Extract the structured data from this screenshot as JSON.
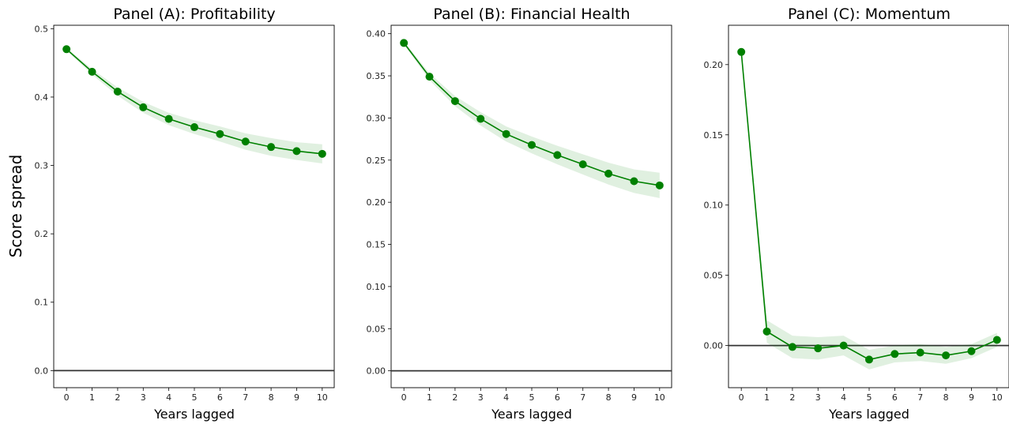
{
  "figure": {
    "ylabel": "Score spread"
  },
  "chart_data": [
    {
      "type": "line",
      "title": "Panel (A): Profitability",
      "xlabel": "Years lagged",
      "ylabel": "Score spread",
      "x": [
        0,
        1,
        2,
        3,
        4,
        5,
        6,
        7,
        8,
        9,
        10
      ],
      "ylim": [
        -0.025,
        0.505
      ],
      "yticks": [
        0.0,
        0.1,
        0.2,
        0.3,
        0.4,
        0.5
      ],
      "ytick_labels": [
        "0.0",
        "0.1",
        "0.2",
        "0.3",
        "0.4",
        "0.5"
      ],
      "series": [
        {
          "values": [
            0.47,
            0.437,
            0.408,
            0.385,
            0.368,
            0.356,
            0.346,
            0.335,
            0.327,
            0.321,
            0.317
          ],
          "ci_lower": [
            0.468,
            0.433,
            0.402,
            0.377,
            0.359,
            0.346,
            0.335,
            0.323,
            0.314,
            0.308,
            0.303
          ],
          "ci_upper": [
            0.472,
            0.441,
            0.414,
            0.393,
            0.377,
            0.366,
            0.357,
            0.347,
            0.34,
            0.334,
            0.331
          ],
          "color": "#008000"
        }
      ],
      "hline": 0,
      "grid": false
    },
    {
      "type": "line",
      "title": "Panel (B): Financial Health",
      "xlabel": "Years lagged",
      "ylabel": "",
      "x": [
        0,
        1,
        2,
        3,
        4,
        5,
        6,
        7,
        8,
        9,
        10
      ],
      "ylim": [
        -0.02,
        0.41
      ],
      "yticks": [
        0.0,
        0.05,
        0.1,
        0.15,
        0.2,
        0.25,
        0.3,
        0.35,
        0.4
      ],
      "ytick_labels": [
        "0.00",
        "0.05",
        "0.10",
        "0.15",
        "0.20",
        "0.25",
        "0.30",
        "0.35",
        "0.40"
      ],
      "series": [
        {
          "values": [
            0.389,
            0.349,
            0.32,
            0.299,
            0.281,
            0.268,
            0.256,
            0.245,
            0.234,
            0.225,
            0.22
          ],
          "ci_lower": [
            0.387,
            0.345,
            0.314,
            0.291,
            0.272,
            0.258,
            0.245,
            0.233,
            0.221,
            0.211,
            0.205
          ],
          "ci_upper": [
            0.391,
            0.353,
            0.326,
            0.307,
            0.29,
            0.278,
            0.267,
            0.257,
            0.247,
            0.239,
            0.235
          ],
          "color": "#008000"
        }
      ],
      "hline": 0,
      "grid": false
    },
    {
      "type": "line",
      "title": "Panel (C): Momentum",
      "xlabel": "Years lagged",
      "ylabel": "",
      "x": [
        0,
        1,
        2,
        3,
        4,
        5,
        6,
        7,
        8,
        9,
        10
      ],
      "ylim": [
        -0.03,
        0.228
      ],
      "yticks": [
        0.0,
        0.05,
        0.1,
        0.15,
        0.2
      ],
      "ytick_labels": [
        "0.00",
        "0.05",
        "0.10",
        "0.15",
        "0.20"
      ],
      "series": [
        {
          "values": [
            0.209,
            0.01,
            -0.001,
            -0.002,
            0.0,
            -0.01,
            -0.006,
            -0.005,
            -0.007,
            -0.004,
            0.004
          ],
          "ci_lower": [
            0.207,
            0.002,
            -0.009,
            -0.01,
            -0.007,
            -0.017,
            -0.012,
            -0.011,
            -0.013,
            -0.009,
            -0.001
          ],
          "ci_upper": [
            0.211,
            0.018,
            0.007,
            0.006,
            0.007,
            -0.003,
            0.0,
            0.001,
            -0.001,
            0.001,
            0.009
          ],
          "color": "#008000"
        }
      ],
      "hline": 0,
      "grid": false
    }
  ]
}
